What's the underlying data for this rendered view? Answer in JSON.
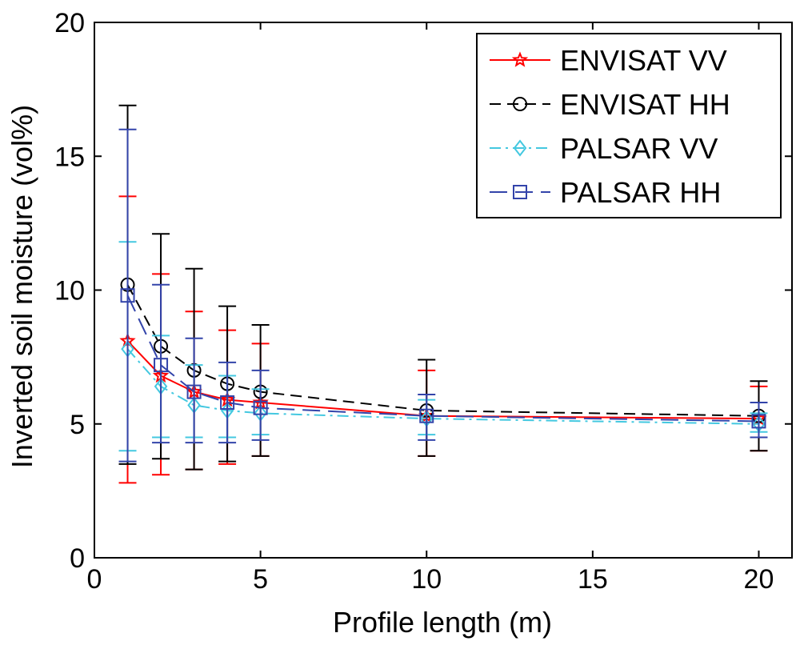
{
  "chart_data": {
    "type": "line",
    "title": "",
    "xlabel": "Profile length (m)",
    "ylabel": "Inverted soil moisture (vol%)",
    "xlim": [
      0,
      21
    ],
    "ylim": [
      0,
      20
    ],
    "xticks": [
      0,
      5,
      10,
      15,
      20
    ],
    "yticks": [
      0,
      5,
      10,
      15,
      20
    ],
    "x": [
      1,
      2,
      3,
      4,
      5,
      10,
      20
    ],
    "legend_position": "top-right",
    "series": [
      {
        "name": "ENVISAT VV",
        "color": "#ff0000",
        "marker": "star",
        "dash": "solid",
        "values": [
          8.1,
          6.8,
          6.2,
          5.9,
          5.8,
          5.3,
          5.2
        ],
        "err_low": [
          2.8,
          3.1,
          3.3,
          3.5,
          3.8,
          3.8,
          4.0
        ],
        "err_high": [
          13.5,
          10.6,
          9.2,
          8.5,
          8.0,
          7.0,
          6.4
        ]
      },
      {
        "name": "ENVISAT HH",
        "color": "#000000",
        "marker": "circle",
        "dash": "dash",
        "values": [
          10.2,
          7.9,
          7.0,
          6.5,
          6.2,
          5.5,
          5.3
        ],
        "err_low": [
          3.5,
          3.7,
          3.3,
          3.6,
          3.8,
          3.8,
          4.0
        ],
        "err_high": [
          16.9,
          12.1,
          10.8,
          9.4,
          8.7,
          7.4,
          6.6
        ]
      },
      {
        "name": "PALSAR VV",
        "color": "#44c8e0",
        "marker": "diamond",
        "dash": "dashdot",
        "values": [
          7.8,
          6.4,
          5.7,
          5.5,
          5.4,
          5.2,
          5.0
        ],
        "err_low": [
          4.0,
          4.5,
          4.5,
          4.5,
          4.6,
          4.6,
          4.7
        ],
        "err_high": [
          11.8,
          8.3,
          7.2,
          6.8,
          6.3,
          5.9,
          5.4
        ]
      },
      {
        "name": "PALSAR HH",
        "color": "#3344aa",
        "marker": "square",
        "dash": "longdash",
        "values": [
          9.8,
          7.2,
          6.2,
          5.8,
          5.6,
          5.3,
          5.1
        ],
        "err_low": [
          3.6,
          4.3,
          4.3,
          4.3,
          4.4,
          4.4,
          4.5
        ],
        "err_high": [
          16.0,
          10.2,
          8.2,
          7.3,
          7.0,
          6.1,
          5.8
        ]
      }
    ]
  }
}
